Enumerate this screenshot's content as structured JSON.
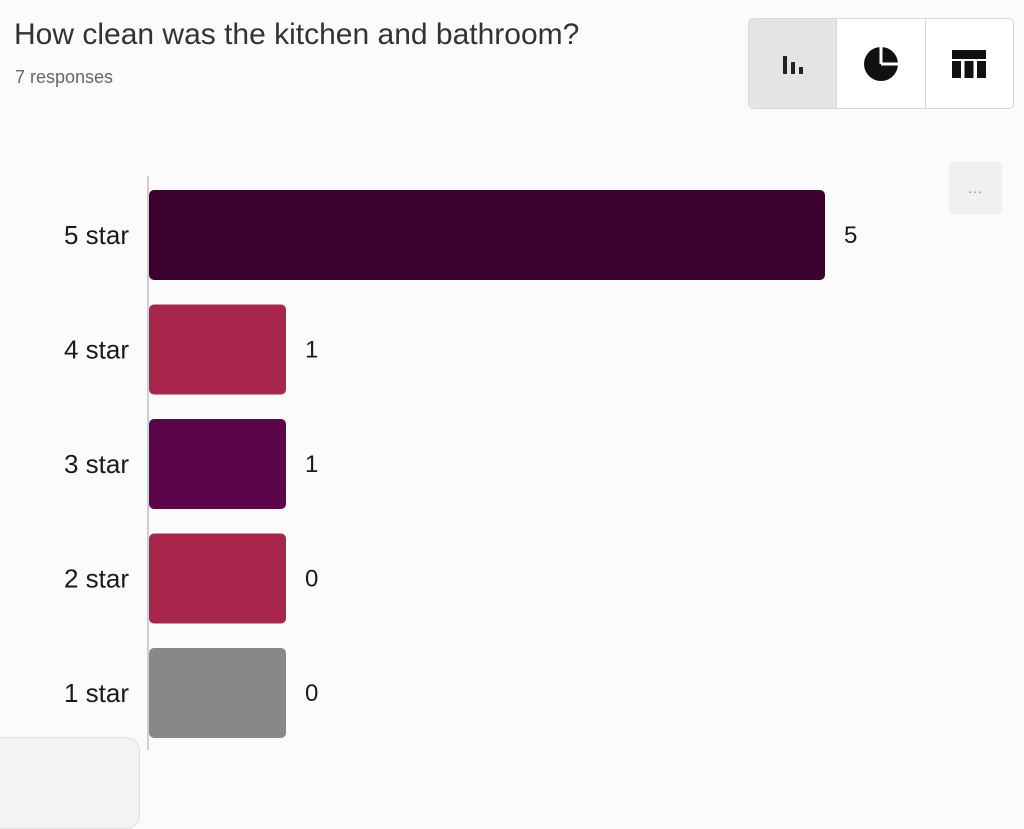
{
  "question": {
    "title": "How clean was the kitchen and bathroom?",
    "responses": "7 responses"
  },
  "view_toggle": {
    "options": [
      {
        "icon": "bar-chart-icon",
        "active": true
      },
      {
        "icon": "pie-chart-icon",
        "active": false
      },
      {
        "icon": "table-icon",
        "active": false
      }
    ]
  },
  "more_button": {
    "label": "..."
  },
  "chart_data": {
    "type": "bar",
    "orientation": "horizontal",
    "categories": [
      "5 star",
      "4 star",
      "3 star",
      "2 star",
      "1 star"
    ],
    "values": [
      5,
      1,
      1,
      0,
      0
    ],
    "colors": [
      "#3d0130",
      "#a8264c",
      "#5a0648",
      "#a8264c",
      "#888888"
    ],
    "xlim": [
      0,
      5
    ],
    "grid": false,
    "legend": "none"
  }
}
